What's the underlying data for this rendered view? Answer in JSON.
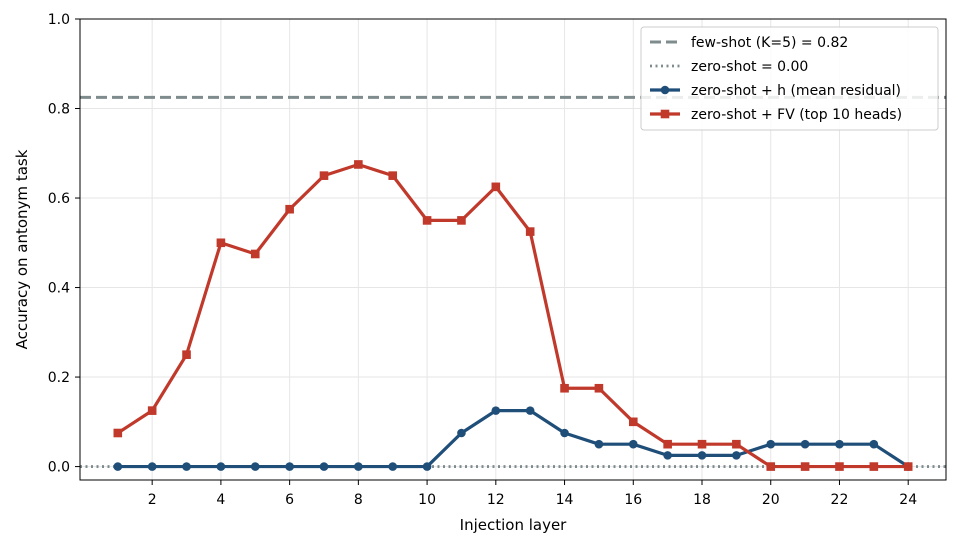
{
  "chart_data": {
    "type": "line",
    "xlabel": "Injection layer",
    "ylabel": "Accuracy on antonym task",
    "xlim": [
      -0.1,
      25.1
    ],
    "ylim": [
      -0.03,
      1.0
    ],
    "xticks": [
      2,
      4,
      6,
      8,
      10,
      12,
      14,
      16,
      18,
      20,
      22,
      24
    ],
    "yticks": [
      0.0,
      0.2,
      0.4,
      0.6,
      0.8,
      1.0
    ],
    "ytick_labels": [
      "0.0",
      "0.2",
      "0.4",
      "0.6",
      "0.8",
      "1.0"
    ],
    "grid": true,
    "legend_position": "top-right",
    "reference_lines": [
      {
        "name": "few-shot (K=5) = 0.82",
        "y": 0.825,
        "style": "dashed",
        "color": "#7f8c8d"
      },
      {
        "name": "zero-shot = 0.00",
        "y": 0.0,
        "style": "dotted",
        "color": "#7f8c8d"
      }
    ],
    "x": [
      1,
      2,
      3,
      4,
      5,
      6,
      7,
      8,
      9,
      10,
      11,
      12,
      13,
      14,
      15,
      16,
      17,
      18,
      19,
      20,
      21,
      22,
      23,
      24
    ],
    "series": [
      {
        "name": "zero-shot + h (mean residual)",
        "color": "#1f4e79",
        "marker": "circle",
        "values": [
          0,
          0,
          0,
          0,
          0,
          0,
          0,
          0,
          0,
          0,
          0.075,
          0.125,
          0.125,
          0.075,
          0.05,
          0.05,
          0.025,
          0.025,
          0.025,
          0.05,
          0.05,
          0.05,
          0.05,
          0
        ]
      },
      {
        "name": "zero-shot + FV (top 10 heads)",
        "color": "#c0392b",
        "marker": "square",
        "values": [
          0.075,
          0.125,
          0.25,
          0.5,
          0.475,
          0.575,
          0.65,
          0.675,
          0.65,
          0.55,
          0.55,
          0.625,
          0.525,
          0.175,
          0.175,
          0.1,
          0.05,
          0.05,
          0.05,
          0,
          0,
          0,
          0,
          0
        ]
      }
    ]
  }
}
